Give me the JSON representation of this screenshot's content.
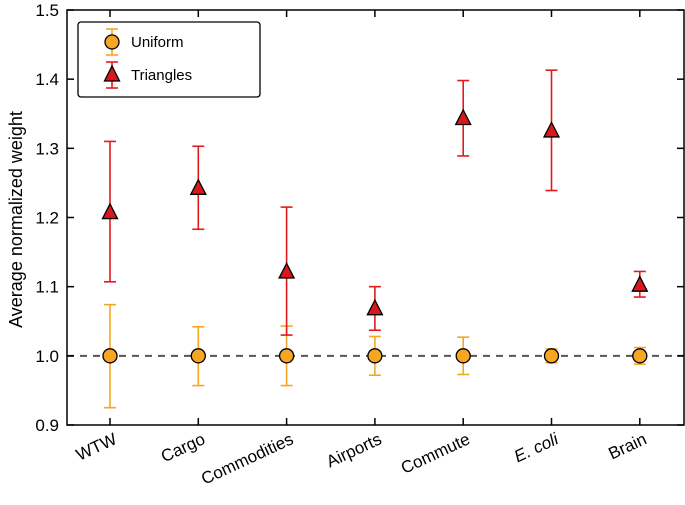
{
  "chart_data": {
    "type": "scatter",
    "title": "",
    "xlabel": "",
    "ylabel": "Average normalized weight",
    "ylim": [
      0.9,
      1.5
    ],
    "yticks": [
      "0.9",
      "1.0",
      "1.1",
      "1.2",
      "1.3",
      "1.4",
      "1.5"
    ],
    "categories": [
      "WTW",
      "Cargo",
      "Commodities",
      "Airports",
      "Commute",
      "E. coli",
      "Brain"
    ],
    "italic_categories": [
      "E. coli"
    ],
    "reference_line": {
      "y": 1.0,
      "style": "dashed"
    },
    "legend_position": "top-left",
    "series": [
      {
        "name": "Uniform",
        "marker": "circle",
        "color": "#f5a623",
        "errbar_color": "#f5a623",
        "values": [
          1.0,
          1.0,
          1.0,
          1.0,
          1.0,
          1.0,
          1.0
        ],
        "err_low": [
          0.925,
          0.957,
          0.957,
          0.972,
          0.973,
          0.99,
          0.988
        ],
        "err_high": [
          1.074,
          1.042,
          1.043,
          1.028,
          1.027,
          1.01,
          1.012
        ]
      },
      {
        "name": "Triangles",
        "marker": "triangle",
        "color": "#d7191c",
        "errbar_color": "#e41a1c",
        "values": [
          1.207,
          1.242,
          1.121,
          1.068,
          1.343,
          1.325,
          1.102
        ],
        "err_low": [
          1.107,
          1.183,
          1.03,
          1.037,
          1.289,
          1.239,
          1.085
        ],
        "err_high": [
          1.31,
          1.303,
          1.215,
          1.1,
          1.398,
          1.413,
          1.122
        ]
      }
    ]
  }
}
